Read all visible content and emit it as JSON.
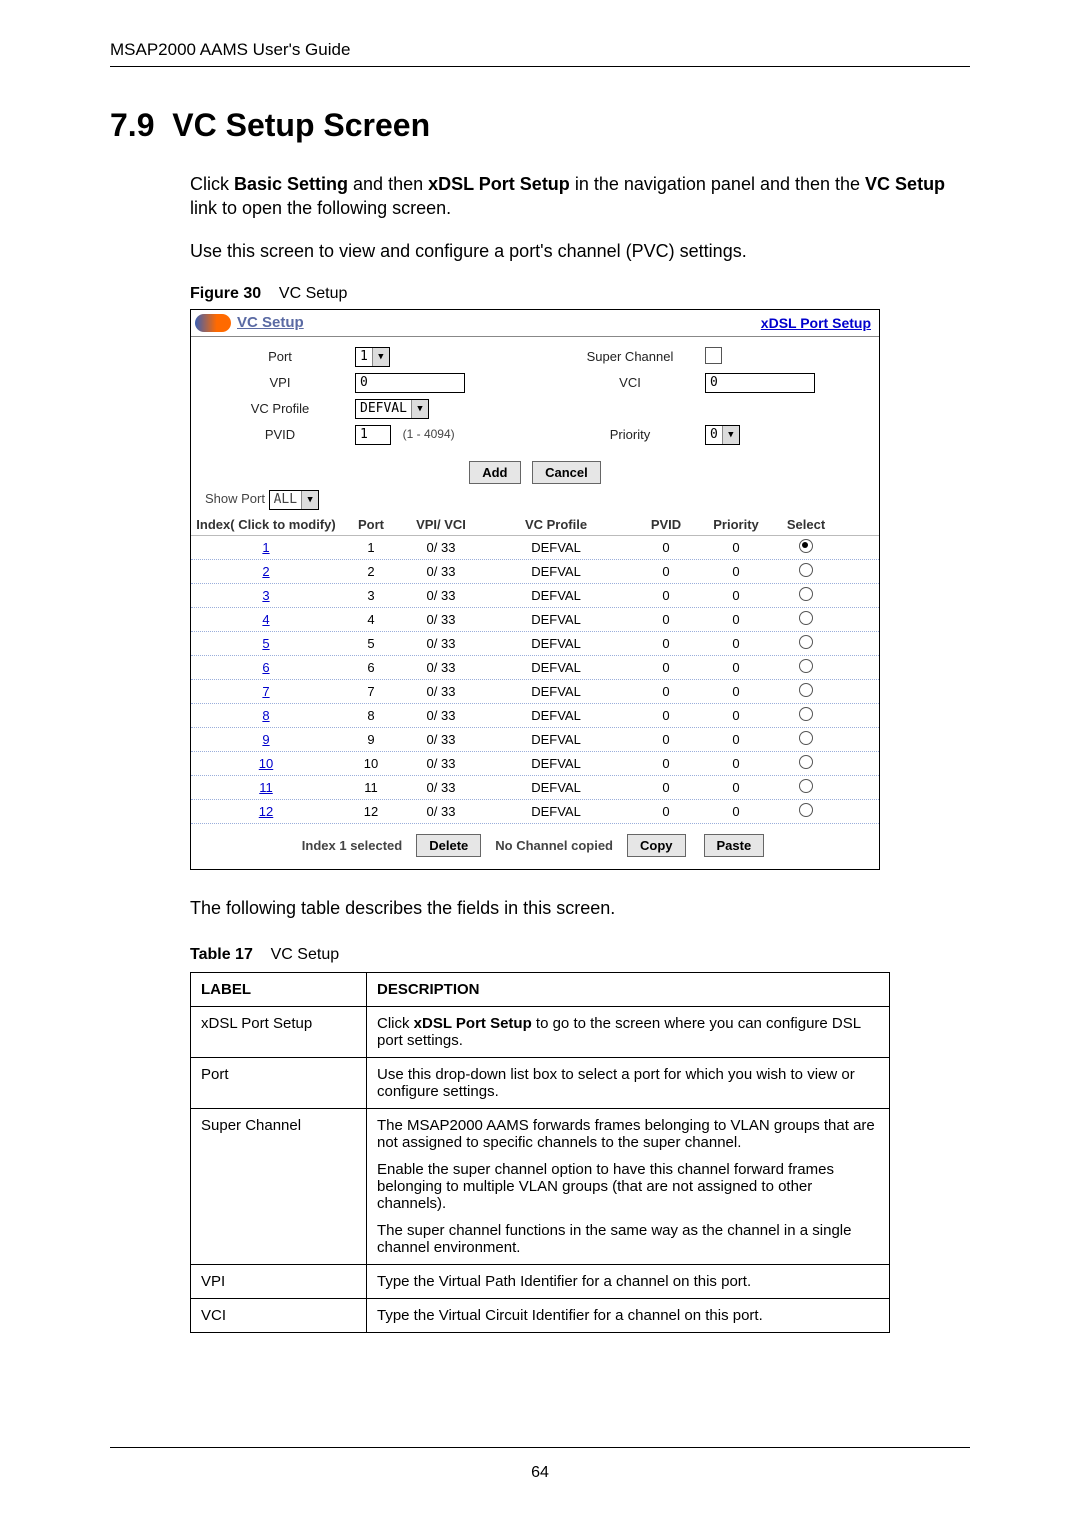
{
  "header": {
    "running_head": "MSAP2000 AAMS User's Guide"
  },
  "section": {
    "number": "7.9",
    "title": "VC Setup Screen",
    "para1_prefix": "Click ",
    "para1_bold1": "Basic Setting",
    "para1_mid": " and then ",
    "para1_bold2": "xDSL Port Setup",
    "para1_after": " in the navigation panel and then the ",
    "para1_bold3": "VC Setup",
    "para1_end": " link to open the following screen.",
    "para2": "Use this screen to view and configure a port's channel (PVC) settings."
  },
  "figure": {
    "label": "Figure 30",
    "caption": "VC Setup"
  },
  "panel": {
    "title": "VC Setup",
    "link": "xDSL Port Setup",
    "labels": {
      "port": "Port",
      "super_channel": "Super Channel",
      "vpi": "VPI",
      "vci": "VCI",
      "vc_profile": "VC Profile",
      "pvid": "PVID",
      "priority": "Priority"
    },
    "values": {
      "port": "1",
      "vpi": "0",
      "vci": "0",
      "vc_profile": "DEFVAL",
      "pvid": "1",
      "pvid_hint": "(1 - 4094)",
      "priority": "0"
    },
    "buttons": {
      "add": "Add",
      "cancel": "Cancel",
      "delete": "Delete",
      "copy": "Copy",
      "paste": "Paste"
    },
    "show_port_label": "Show Port",
    "show_port_value": "ALL",
    "columns": {
      "index": "Index( Click to modify)",
      "port": "Port",
      "vpivci": "VPI/ VCI",
      "vcprofile": "VC Profile",
      "pvid": "PVID",
      "priority": "Priority",
      "select": "Select"
    },
    "rows": [
      {
        "index": "1",
        "port": "1",
        "vpivci": "0/ 33",
        "vcprofile": "DEFVAL",
        "pvid": "0",
        "priority": "0",
        "selected": true
      },
      {
        "index": "2",
        "port": "2",
        "vpivci": "0/ 33",
        "vcprofile": "DEFVAL",
        "pvid": "0",
        "priority": "0",
        "selected": false
      },
      {
        "index": "3",
        "port": "3",
        "vpivci": "0/ 33",
        "vcprofile": "DEFVAL",
        "pvid": "0",
        "priority": "0",
        "selected": false
      },
      {
        "index": "4",
        "port": "4",
        "vpivci": "0/ 33",
        "vcprofile": "DEFVAL",
        "pvid": "0",
        "priority": "0",
        "selected": false
      },
      {
        "index": "5",
        "port": "5",
        "vpivci": "0/ 33",
        "vcprofile": "DEFVAL",
        "pvid": "0",
        "priority": "0",
        "selected": false
      },
      {
        "index": "6",
        "port": "6",
        "vpivci": "0/ 33",
        "vcprofile": "DEFVAL",
        "pvid": "0",
        "priority": "0",
        "selected": false
      },
      {
        "index": "7",
        "port": "7",
        "vpivci": "0/ 33",
        "vcprofile": "DEFVAL",
        "pvid": "0",
        "priority": "0",
        "selected": false
      },
      {
        "index": "8",
        "port": "8",
        "vpivci": "0/ 33",
        "vcprofile": "DEFVAL",
        "pvid": "0",
        "priority": "0",
        "selected": false
      },
      {
        "index": "9",
        "port": "9",
        "vpivci": "0/ 33",
        "vcprofile": "DEFVAL",
        "pvid": "0",
        "priority": "0",
        "selected": false
      },
      {
        "index": "10",
        "port": "10",
        "vpivci": "0/ 33",
        "vcprofile": "DEFVAL",
        "pvid": "0",
        "priority": "0",
        "selected": false
      },
      {
        "index": "11",
        "port": "11",
        "vpivci": "0/ 33",
        "vcprofile": "DEFVAL",
        "pvid": "0",
        "priority": "0",
        "selected": false
      },
      {
        "index": "12",
        "port": "12",
        "vpivci": "0/ 33",
        "vcprofile": "DEFVAL",
        "pvid": "0",
        "priority": "0",
        "selected": false
      }
    ],
    "bottom": {
      "selected_text": "Index 1 selected",
      "copied_text": "No Channel copied"
    }
  },
  "post_figure_text": "The following table describes the fields in this screen.",
  "table": {
    "label": "Table 17",
    "caption": "VC Setup",
    "head_label": "LABEL",
    "head_desc": "DESCRIPTION",
    "rows": [
      {
        "label": "xDSL Port Setup",
        "desc_pre": "Click ",
        "desc_bold": "xDSL Port Setup",
        "desc_post": " to go to the screen where you can configure DSL port settings."
      },
      {
        "label": "Port",
        "desc": "Use this drop-down list box to select a port for which you wish to view or configure settings."
      },
      {
        "label": "Super Channel",
        "desc_multi": [
          "The MSAP2000 AAMS forwards frames belonging to VLAN groups that are not assigned to specific channels to the super channel.",
          "Enable the super channel option to have this channel forward frames belonging to multiple VLAN groups (that are not assigned to other channels).",
          "The super channel functions in the same way as the channel in a single channel environment."
        ]
      },
      {
        "label": "VPI",
        "desc": "Type the Virtual Path Identifier for a channel on this port."
      },
      {
        "label": "VCI",
        "desc": "Type the Virtual Circuit Identifier for a channel on this port."
      }
    ]
  },
  "page_number": "64"
}
